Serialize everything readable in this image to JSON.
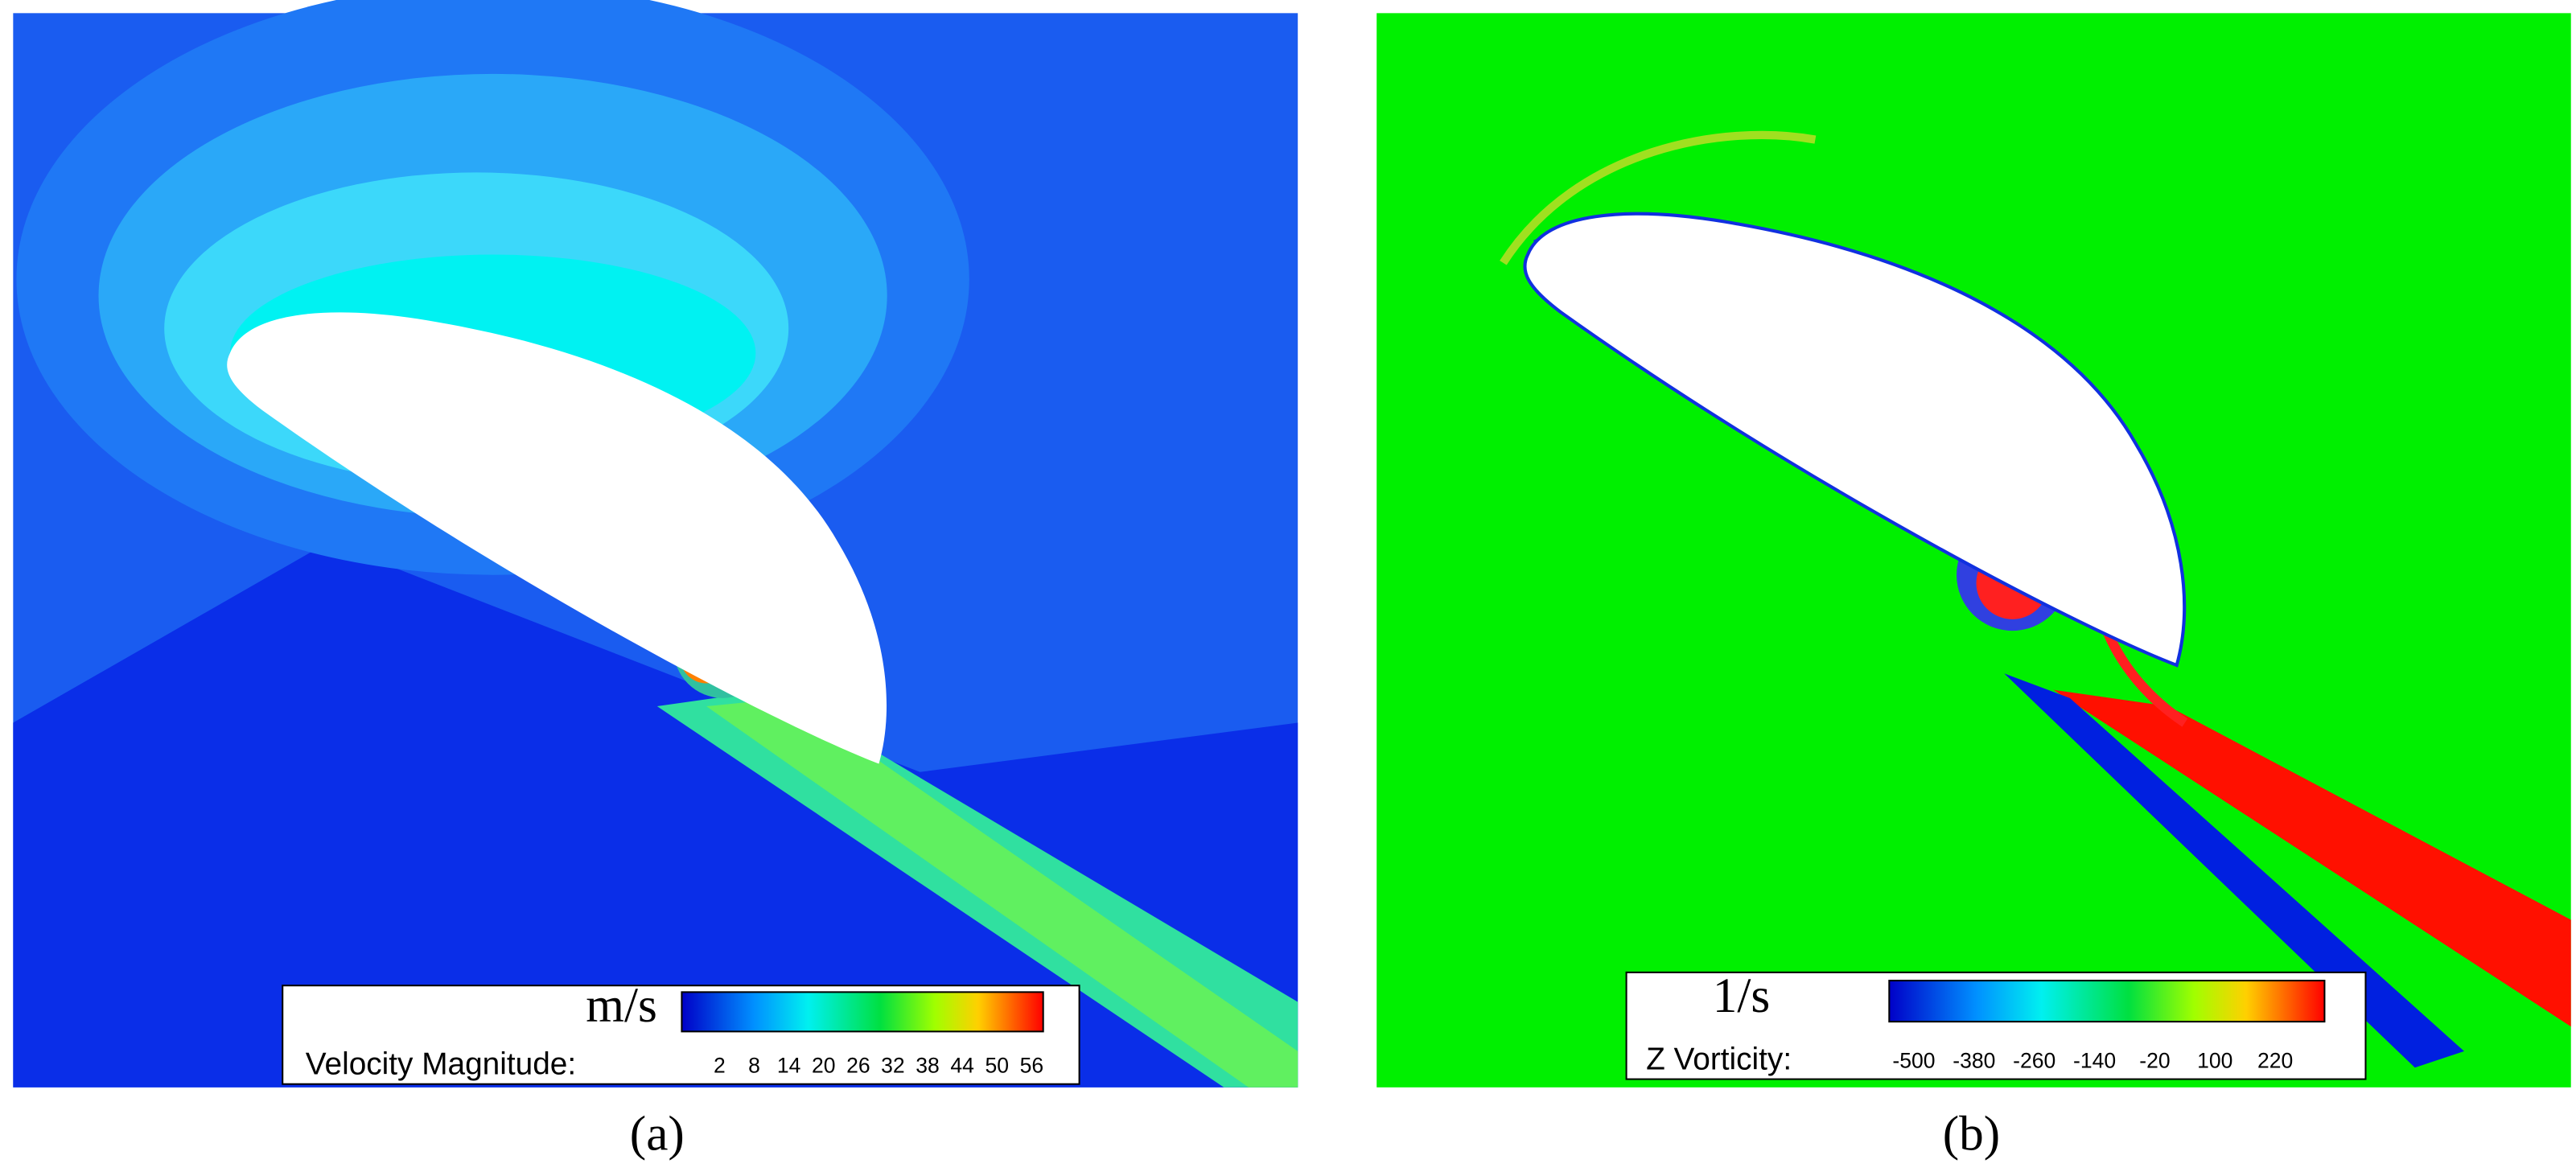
{
  "panels": [
    {
      "caption": "(a)",
      "legend": {
        "unit": "m/s",
        "label": "Velocity Magnitude:",
        "ticks": [
          2,
          8,
          14,
          20,
          26,
          32,
          38,
          44,
          50,
          56
        ]
      }
    },
    {
      "caption": "(b)",
      "legend": {
        "unit": "1/s",
        "label": "Z Vorticity:",
        "ticks": [
          -500,
          -380,
          -260,
          -140,
          -20,
          100,
          220
        ]
      }
    }
  ]
}
